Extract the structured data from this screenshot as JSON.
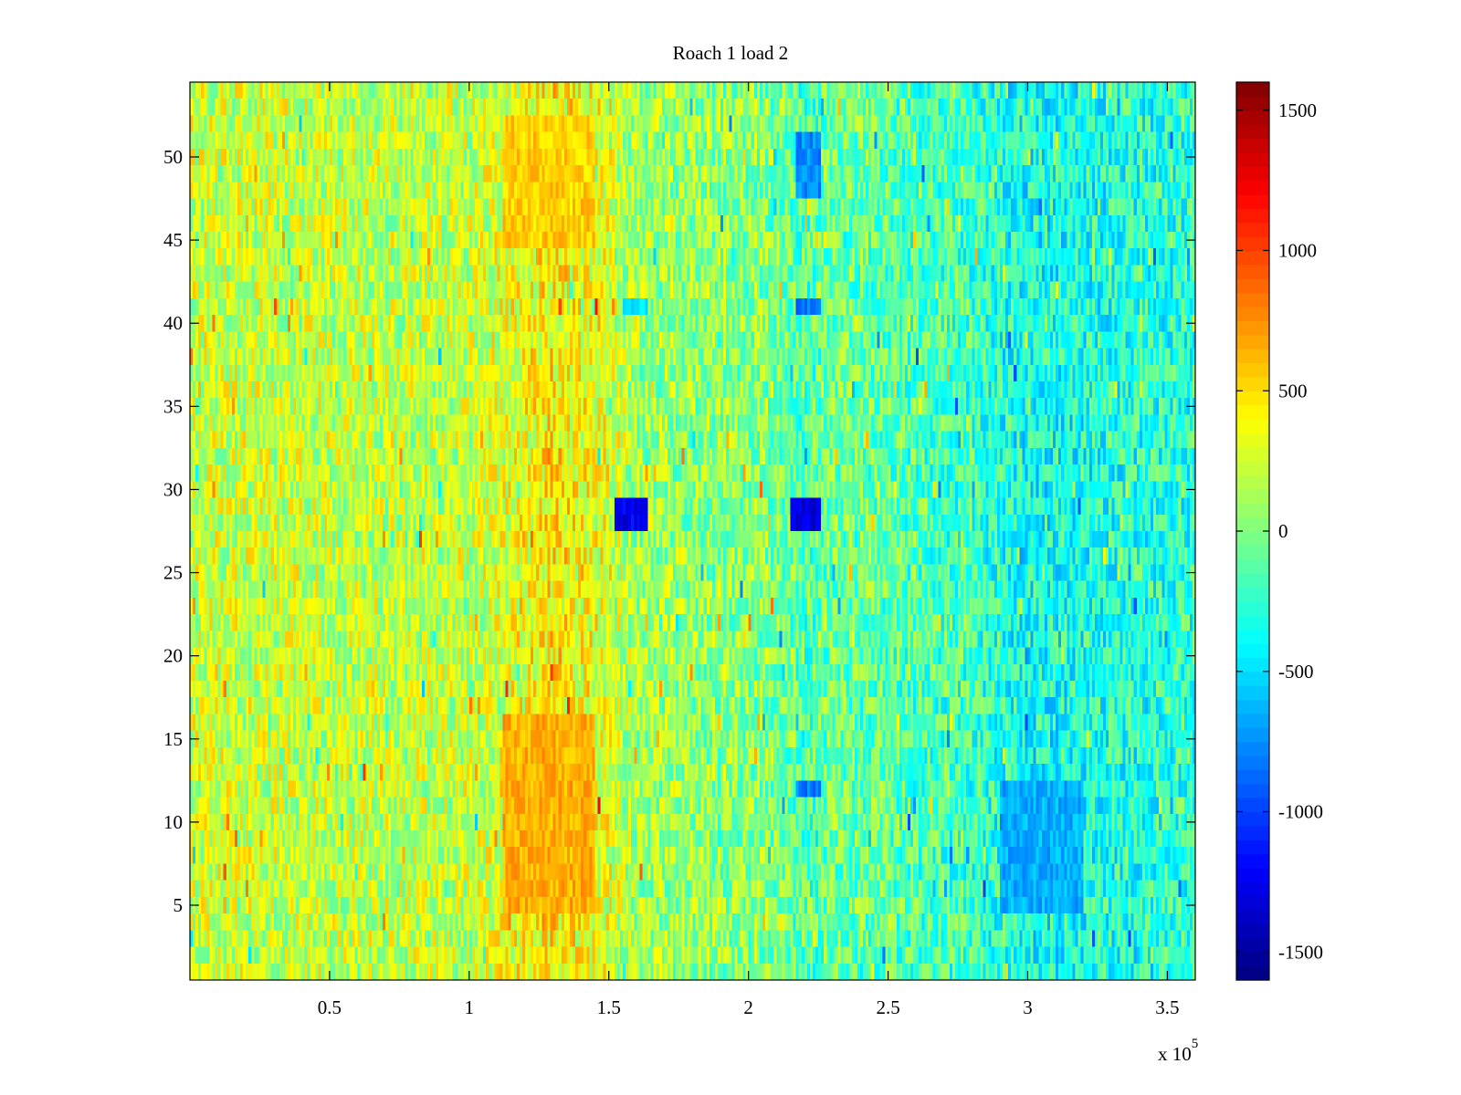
{
  "chart_data": {
    "type": "heatmap",
    "title": "Roach 1 load 2",
    "xlabel": "",
    "ylabel": "",
    "x_multiplier_label": {
      "base": "x 10",
      "exponent": "5"
    },
    "xlim": [
      0,
      360000
    ],
    "ylim": [
      0.5,
      54.5
    ],
    "x_ticks": [
      {
        "value": 50000,
        "label": "0.5"
      },
      {
        "value": 100000,
        "label": "1"
      },
      {
        "value": 150000,
        "label": "1.5"
      },
      {
        "value": 200000,
        "label": "2"
      },
      {
        "value": 250000,
        "label": "2.5"
      },
      {
        "value": 300000,
        "label": "3"
      },
      {
        "value": 350000,
        "label": "3.5"
      }
    ],
    "y_ticks": [
      {
        "value": 5,
        "label": "5"
      },
      {
        "value": 10,
        "label": "10"
      },
      {
        "value": 15,
        "label": "15"
      },
      {
        "value": 20,
        "label": "20"
      },
      {
        "value": 25,
        "label": "25"
      },
      {
        "value": 30,
        "label": "30"
      },
      {
        "value": 35,
        "label": "35"
      },
      {
        "value": 40,
        "label": "40"
      },
      {
        "value": 45,
        "label": "45"
      },
      {
        "value": 50,
        "label": "50"
      }
    ],
    "rows": 54,
    "colormap": "jet",
    "clim": [
      -1600,
      1600
    ],
    "colorbar_ticks": [
      {
        "value": 1500,
        "label": "1500"
      },
      {
        "value": 1000,
        "label": "1000"
      },
      {
        "value": 500,
        "label": "500"
      },
      {
        "value": 0,
        "label": "0"
      },
      {
        "value": -500,
        "label": "-500"
      },
      {
        "value": -1000,
        "label": "-1000"
      },
      {
        "value": -1500,
        "label": "-1500"
      }
    ],
    "base_profile": [
      {
        "x": 0,
        "value": 250
      },
      {
        "x": 40000,
        "value": 220
      },
      {
        "x": 100000,
        "value": 200
      },
      {
        "x": 112000,
        "value": 300
      },
      {
        "x": 130000,
        "value": 450
      },
      {
        "x": 150000,
        "value": 300
      },
      {
        "x": 160000,
        "value": 100
      },
      {
        "x": 210000,
        "value": 0
      },
      {
        "x": 220000,
        "value": -150
      },
      {
        "x": 230000,
        "value": -50
      },
      {
        "x": 280000,
        "value": -200
      },
      {
        "x": 300000,
        "value": -350
      },
      {
        "x": 330000,
        "value": -300
      },
      {
        "x": 360000,
        "value": -250
      }
    ],
    "features": [
      {
        "x_start": 152000,
        "x_end": 164000,
        "y_start": 27.5,
        "y_end": 29.5,
        "value": -1250
      },
      {
        "x_start": 215000,
        "x_end": 226000,
        "y_start": 27.5,
        "y_end": 29.5,
        "value": -1300
      },
      {
        "x_start": 155000,
        "x_end": 164000,
        "y_start": 40.5,
        "y_end": 41.5,
        "value": -500
      },
      {
        "x_start": 217000,
        "x_end": 226000,
        "y_start": 40.5,
        "y_end": 41.5,
        "value": -800
      },
      {
        "x_start": 217000,
        "x_end": 226000,
        "y_start": 47.5,
        "y_end": 51.5,
        "value": -750
      },
      {
        "x_start": 217000,
        "x_end": 226000,
        "y_start": 11.5,
        "y_end": 12.5,
        "value": -800
      },
      {
        "x_start": 112000,
        "x_end": 145000,
        "y_start": 4.5,
        "y_end": 16.5,
        "value": 650
      },
      {
        "x_start": 112000,
        "x_end": 145000,
        "y_start": 44.5,
        "y_end": 52.5,
        "value": 550
      },
      {
        "x_start": 290000,
        "x_end": 320000,
        "y_start": 4.5,
        "y_end": 12.5,
        "value": -650
      }
    ]
  }
}
